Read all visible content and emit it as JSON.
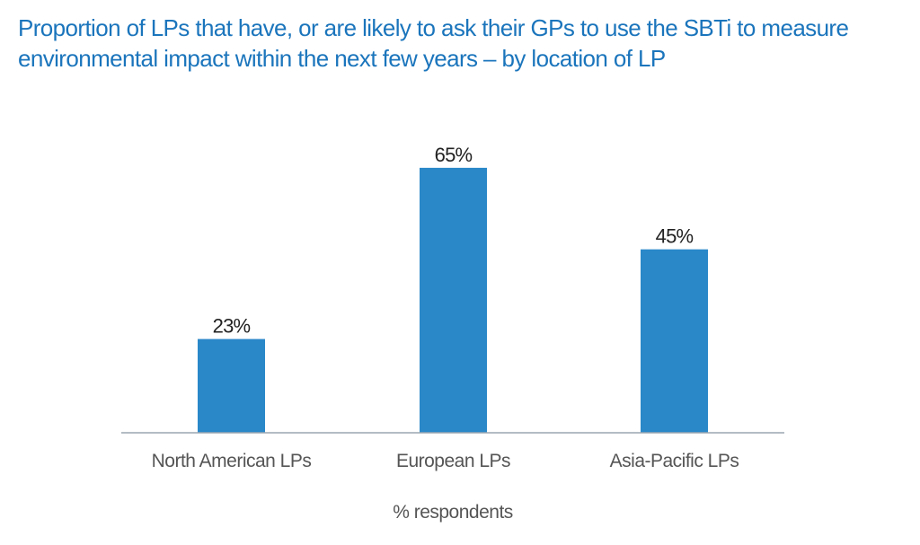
{
  "chart_data": {
    "type": "bar",
    "title": "Proportion of LPs that have, or are likely to ask their GPs to use the SBTi to measure environmental impact within the next few years – by location of LP",
    "categories": [
      "North American LPs",
      "European LPs",
      "Asia-Pacific LPs"
    ],
    "values": [
      23,
      65,
      45
    ],
    "data_labels": [
      "23%",
      "65%",
      "45%"
    ],
    "xlabel": "% respondents",
    "ylabel": "",
    "ylim": [
      0,
      100
    ],
    "grid": false,
    "legend": "none",
    "colors": {
      "bar": "#2a88c9",
      "title": "#1b75bc",
      "axis": "#9aa5b0"
    }
  }
}
